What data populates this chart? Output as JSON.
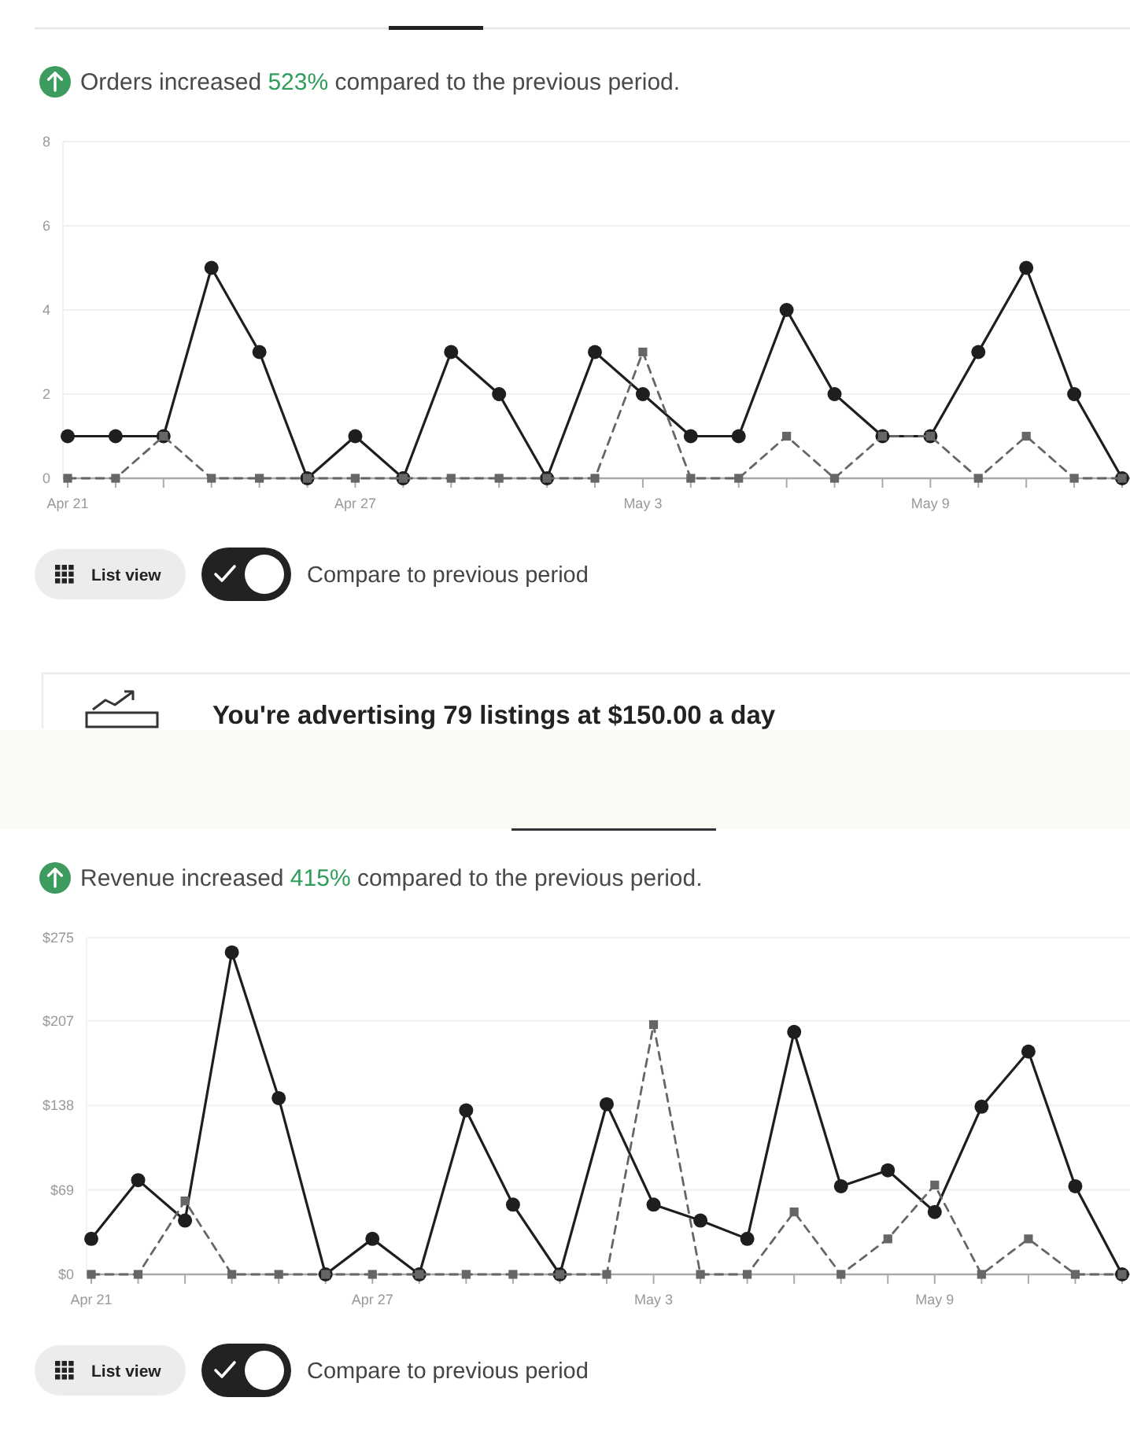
{
  "chart_data": [
    {
      "type": "line",
      "title": "Orders increased 523% compared to the previous period.",
      "categories": [
        "Apr 21",
        null,
        null,
        null,
        null,
        null,
        "Apr 27",
        null,
        null,
        null,
        null,
        null,
        "May 3",
        null,
        null,
        null,
        null,
        null,
        "May 9",
        null,
        null,
        null,
        null
      ],
      "series": [
        {
          "color": "#1e1e1e",
          "marker": "circle",
          "line_style": "solid",
          "values": [
            1,
            1,
            1,
            5,
            3,
            0,
            1,
            0,
            3,
            2,
            0,
            3,
            2,
            1,
            1,
            4,
            2,
            1,
            1,
            3,
            5,
            2,
            0
          ]
        },
        {
          "color": "#666666",
          "marker": "square",
          "line_style": "dashed",
          "values": [
            0,
            0,
            1,
            0,
            0,
            0,
            0,
            0,
            0,
            0,
            0,
            0,
            3,
            0,
            0,
            1,
            0,
            1,
            1,
            0,
            1,
            0,
            0
          ]
        }
      ],
      "ylim": [
        0,
        8
      ],
      "yticks": [
        0,
        2,
        4,
        6,
        8
      ],
      "grid": "y",
      "annotations": [
        "List view",
        "Compare to previous period"
      ]
    },
    {
      "type": "other",
      "title": "You're advertising 79 listings at $150.00 a day"
    },
    {
      "type": "line",
      "title": "Revenue increased 415% compared to the previous period.",
      "categories": [
        "Apr 21",
        null,
        null,
        null,
        null,
        null,
        "Apr 27",
        null,
        null,
        null,
        null,
        null,
        "May 3",
        null,
        null,
        null,
        null,
        null,
        "May 9",
        null,
        null,
        null,
        null
      ],
      "series": [
        {
          "color": "#1e1e1e",
          "marker": "circle",
          "line_style": "solid",
          "values": [
            29,
            77,
            44,
            263,
            144,
            0,
            29,
            0,
            134,
            57,
            0,
            139,
            57,
            44,
            29,
            198,
            72,
            85,
            51,
            137,
            182,
            72,
            0
          ]
        },
        {
          "color": "#666666",
          "marker": "square",
          "line_style": "dashed",
          "values": [
            0,
            0,
            60,
            0,
            0,
            0,
            0,
            0,
            0,
            0,
            0,
            0,
            204,
            0,
            0,
            51,
            0,
            29,
            73,
            0,
            29,
            0,
            0
          ]
        }
      ],
      "ylim": [
        0,
        275
      ],
      "yticks": [
        {
          "value": 0,
          "label": "$0"
        },
        {
          "value": 69,
          "label": "$69"
        },
        {
          "value": 138,
          "label": "$138"
        },
        {
          "value": 207,
          "label": "$207"
        },
        {
          "value": 275,
          "label": "$275"
        }
      ],
      "grid": "y",
      "annotations": [
        "List view",
        "Compare to previous period"
      ]
    }
  ]
}
